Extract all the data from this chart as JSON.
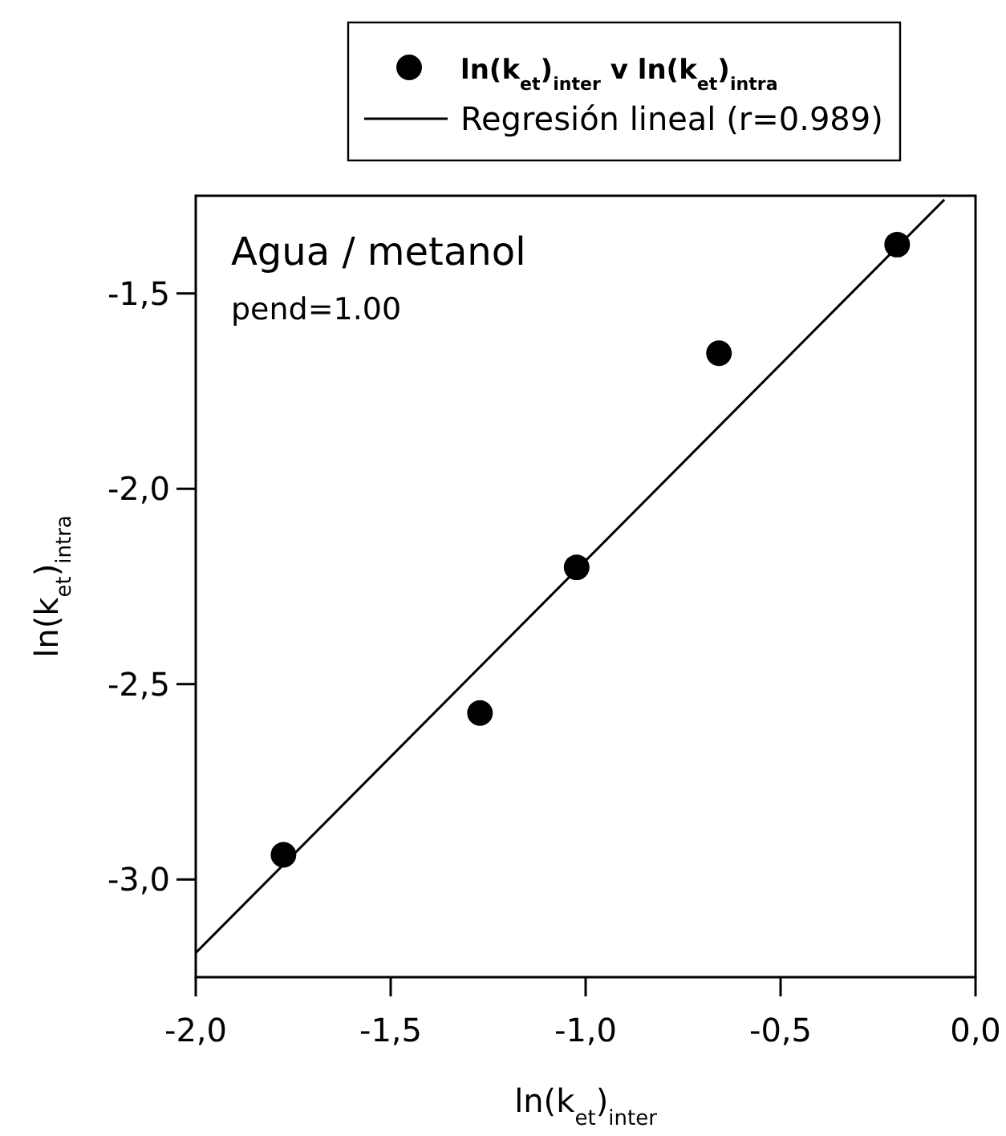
{
  "chart_data": {
    "type": "scatter",
    "xlabel": "ln(k$_{et}$)$_{inter}$",
    "ylabel": "ln(k$_{et}$)$_{intra}$",
    "annotations": [
      "Agua / metanol",
      "pend=1.00"
    ],
    "xlim": [
      -2.0,
      0.0
    ],
    "ylim": [
      -3.25,
      -1.25
    ],
    "xticks": [
      {
        "value": -2.0,
        "label": "-2,0"
      },
      {
        "value": -1.5,
        "label": "-1,5"
      },
      {
        "value": -1.0,
        "label": "-1,0"
      },
      {
        "value": -0.5,
        "label": "-0,5"
      },
      {
        "value": 0.0,
        "label": "0,0"
      }
    ],
    "yticks": [
      {
        "value": -3.0,
        "label": "-3,0"
      },
      {
        "value": -2.5,
        "label": "-2,5"
      },
      {
        "value": -2.0,
        "label": "-2,0"
      },
      {
        "value": -1.5,
        "label": "-1,5"
      }
    ],
    "legend": "top",
    "grid": false,
    "series": [
      {
        "name": "ln(k$_{et}$)$_{inter}$ v ln(k$_{et}$)$_{intra}$",
        "marker": "circle",
        "color": "#000000",
        "x": [
          -1.775,
          -1.271,
          -1.023,
          -0.658,
          -0.201
        ],
        "values": [
          -2.937,
          -2.574,
          -2.201,
          -1.653,
          -1.375
        ]
      },
      {
        "name": "Regresión lineal (r=0.989)",
        "type": "line",
        "marker": "none",
        "line_style": "solid",
        "color": "#000000",
        "x": [
          -2.0,
          -0.08
        ],
        "values": [
          -3.188,
          -1.26
        ]
      }
    ]
  }
}
